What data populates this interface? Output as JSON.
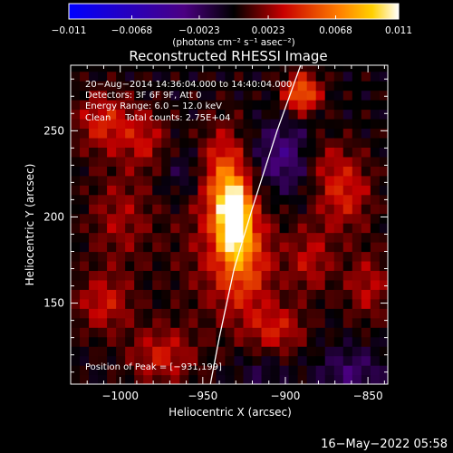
{
  "chart_data": {
    "type": "heatmap",
    "title": "Reconstructed RHESSI Image",
    "xlabel": "Heliocentric X (arcsec)",
    "ylabel": "Heliocentric Y (arcsec)",
    "xlim": [
      -1030,
      -838
    ],
    "ylim": [
      103,
      288
    ],
    "xticks": [
      -1000,
      -950,
      -900,
      -850
    ],
    "yticks": [
      150,
      200,
      250
    ],
    "xtick_labels": [
      "−1000",
      "−950",
      "−900",
      "−850"
    ],
    "ytick_labels": [
      "150",
      "200",
      "250"
    ],
    "colorbar": {
      "range": [
        -0.011,
        0.011
      ],
      "ticks": [
        -0.011,
        -0.0068,
        -0.0023,
        0.0023,
        0.0068,
        0.011
      ],
      "tick_labels": [
        "−0.011",
        "−0.0068",
        "−0.0023",
        "0.0023",
        "0.0068",
        "0.011"
      ],
      "unit_label": "(photons cm⁻² s⁻¹ asec⁻²)"
    },
    "info_lines": [
      "20−Aug−2014 14:36:04.000 to 14:40:04.000",
      "Detectors: 3F 6F 9F, Att 0",
      "Energy Range: 6.0 − 12.0 keV",
      "Clean     Total counts: 2.75E+04"
    ],
    "peak_label": "Position of Peak = [−931,199]",
    "peak": {
      "x": -931,
      "y": 199,
      "value": 0.011
    },
    "sources": [
      {
        "x": -931,
        "y": 199,
        "sx": 6,
        "sy": 13,
        "value": 0.011
      },
      {
        "x": -937,
        "y": 222,
        "sx": 10,
        "sy": 20,
        "value": 0.0055
      },
      {
        "x": -925,
        "y": 175,
        "sx": 12,
        "sy": 22,
        "value": 0.0045
      },
      {
        "x": -890,
        "y": 272,
        "sx": 8,
        "sy": 8,
        "value": 0.0065
      },
      {
        "x": -940,
        "y": 180,
        "sx": 20,
        "sy": 30,
        "value": 0.002
      },
      {
        "x": -1010,
        "y": 255,
        "sx": 12,
        "sy": 12,
        "value": 0.004
      },
      {
        "x": -985,
        "y": 245,
        "sx": 10,
        "sy": 12,
        "value": 0.003
      },
      {
        "x": -1000,
        "y": 200,
        "sx": 14,
        "sy": 20,
        "value": 0.0025
      },
      {
        "x": -1010,
        "y": 150,
        "sx": 12,
        "sy": 12,
        "value": 0.0035
      },
      {
        "x": -975,
        "y": 120,
        "sx": 14,
        "sy": 12,
        "value": 0.0035
      },
      {
        "x": -905,
        "y": 135,
        "sx": 12,
        "sy": 10,
        "value": 0.0035
      },
      {
        "x": -885,
        "y": 175,
        "sx": 10,
        "sy": 14,
        "value": 0.003
      },
      {
        "x": -865,
        "y": 215,
        "sx": 12,
        "sy": 16,
        "value": 0.004
      },
      {
        "x": -850,
        "y": 160,
        "sx": 10,
        "sy": 14,
        "value": 0.003
      },
      {
        "x": -880,
        "y": 235,
        "sx": 10,
        "sy": 10,
        "value": 0.002
      },
      {
        "x": -900,
        "y": 235,
        "sx": 14,
        "sy": 14,
        "value": -0.0035
      },
      {
        "x": -960,
        "y": 225,
        "sx": 10,
        "sy": 10,
        "value": -0.0018
      },
      {
        "x": -860,
        "y": 110,
        "sx": 14,
        "sy": 10,
        "value": -0.0025
      },
      {
        "x": -915,
        "y": 110,
        "sx": 10,
        "sy": 8,
        "value": -0.0015
      }
    ],
    "limb_curve": [
      [
        -890,
        290
      ],
      [
        -905,
        250
      ],
      [
        -920,
        205
      ],
      [
        -931,
        170
      ],
      [
        -940,
        130
      ],
      [
        -946,
        100
      ]
    ]
  },
  "timestamp": "16−May−2022 05:58"
}
